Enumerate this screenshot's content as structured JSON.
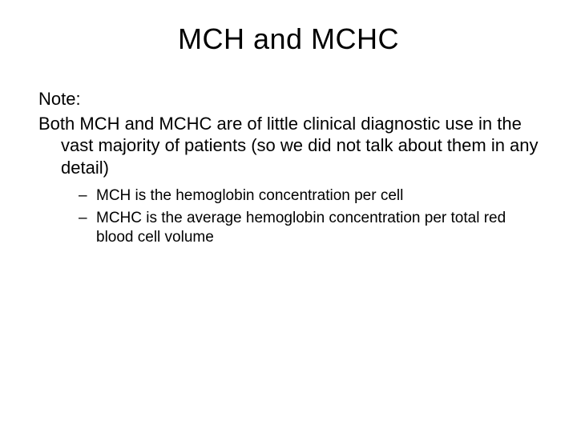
{
  "slide": {
    "title": "MCH and MCHC",
    "note_label": "Note:",
    "main_paragraph": "Both MCH and MCHC are of little clinical diagnostic use in the vast majority of patients (so we did not talk about them in any detail)",
    "bullets": [
      "MCH is the hemoglobin concentration per cell",
      "MCHC is the average hemoglobin concentration per total red blood cell volume"
    ]
  },
  "style": {
    "background_color": "#ffffff",
    "text_color": "#000000",
    "title_fontsize": 36,
    "body_fontsize": 22,
    "bullet_fontsize": 19,
    "font_family": "Arial"
  }
}
